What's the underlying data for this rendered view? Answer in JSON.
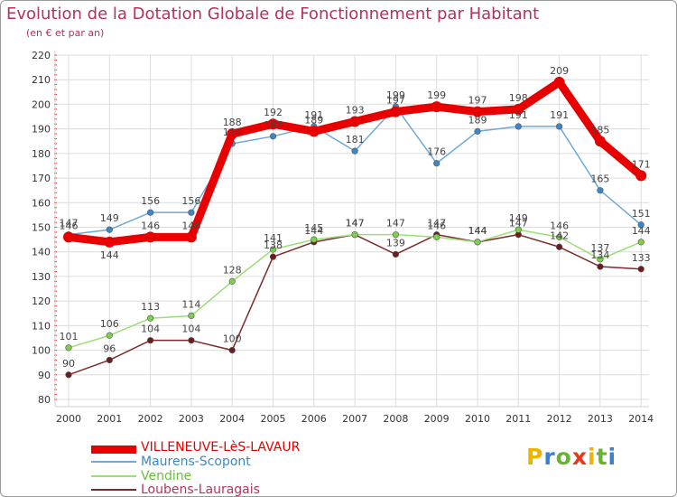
{
  "title": "Evolution de la Dotation Globale de Fonctionnement par Habitant",
  "subtitle": "(en € et par an)",
  "logo": {
    "text": "Proxiti",
    "letter_colors": [
      "#f0b400",
      "#3c7fd0",
      "#6ab32e",
      "#e8371d",
      "#f0b400",
      "#6ab32e",
      "#3c7fd0"
    ]
  },
  "colors": {
    "title": "#b0325e",
    "axis_text": "#333333",
    "grid": "#dcdcdc",
    "tick_mark": "#e23a3a"
  },
  "chart_data": {
    "type": "line",
    "title": "Evolution de la Dotation Globale de Fonctionnement par Habitant",
    "subtitle": "(en € et par an)",
    "xlabel": "",
    "ylabel": "",
    "x": [
      "2000",
      "2001",
      "2002",
      "2003",
      "2004",
      "2005",
      "2006",
      "2007",
      "2008",
      "2009",
      "2010",
      "2011",
      "2012",
      "2013",
      "2014"
    ],
    "ylim": [
      80,
      220
    ],
    "yticks": [
      80,
      90,
      100,
      110,
      120,
      130,
      140,
      150,
      160,
      170,
      180,
      190,
      200,
      210,
      220
    ],
    "grid": true,
    "legend_position": "bottom-left",
    "series": [
      {
        "name": "VILLENEUVE-LèS-LAVAUR",
        "color": "#e80000",
        "marker_color": "#e80000",
        "thick": true,
        "values": [
          146,
          144,
          146,
          146,
          188,
          192,
          189,
          193,
          197,
          199,
          197,
          198,
          209,
          185,
          171
        ],
        "labels": [
          "146",
          "144",
          "146",
          "146",
          "188",
          "192",
          "189",
          "193",
          "197",
          "199",
          "197",
          "198",
          "209",
          "185",
          "171"
        ]
      },
      {
        "name": "Maurens-Scopont",
        "color": "#6fa8d6",
        "marker_color": "#3f86c8",
        "thick": false,
        "values": [
          147,
          149,
          156,
          156,
          184,
          187,
          191,
          181,
          199,
          176,
          189,
          191,
          191,
          165,
          151
        ],
        "labels": [
          "147",
          "149",
          "156",
          "156",
          "184",
          "187",
          "191",
          "181",
          "199",
          "176",
          "189",
          "191",
          "191",
          "165",
          "151"
        ]
      },
      {
        "name": "Vendine",
        "color": "#9dde7a",
        "marker_color": "#7ed04a",
        "thick": false,
        "values": [
          101,
          106,
          113,
          114,
          128,
          141,
          145,
          147,
          147,
          146,
          144,
          149,
          146,
          137,
          144
        ],
        "labels": [
          "101",
          "106",
          "113",
          "114",
          "128",
          "141",
          "145",
          "147",
          "147",
          "146",
          "144",
          "149",
          "146",
          "137",
          "144"
        ]
      },
      {
        "name": "Loubens-Lauragais",
        "color": "#7a2c2c",
        "marker_color": "#6b1d1d",
        "thick": false,
        "values": [
          90,
          96,
          104,
          104,
          100,
          138,
          144,
          147,
          139,
          147,
          144,
          147,
          142,
          134,
          133
        ],
        "labels": [
          "90",
          "96",
          "104",
          "104",
          "100",
          "138",
          "144",
          "147",
          "139",
          "147",
          "144",
          "147",
          "142",
          "134",
          "133"
        ]
      }
    ]
  }
}
